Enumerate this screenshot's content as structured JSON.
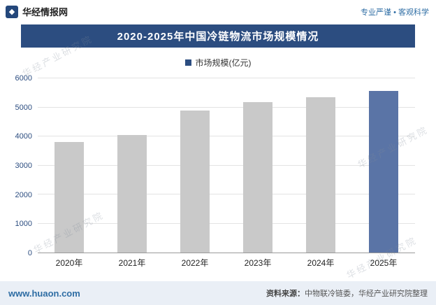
{
  "header": {
    "site_name": "华经情报网",
    "tagline": "专业严谨 • 客观科学",
    "logo_glyph": "◆"
  },
  "title": "2020-2025年中国冷链物流市场规模情况",
  "legend": {
    "label": "市场规模(亿元)"
  },
  "chart_data": {
    "type": "bar",
    "title": "2020-2025年中国冷链物流市场规模情况",
    "categories": [
      "2020年",
      "2021年",
      "2022年",
      "2023年",
      "2024年",
      "2025年"
    ],
    "values": [
      3800,
      4050,
      4900,
      5170,
      5340,
      5560
    ],
    "series": [
      {
        "name": "市场规模(亿元)",
        "values": [
          3800,
          4050,
          4900,
          5170,
          5340,
          5560
        ]
      }
    ],
    "xlabel": "",
    "ylabel": "",
    "ylim": [
      0,
      6000
    ],
    "yticks": [
      0,
      1000,
      2000,
      3000,
      4000,
      5000,
      6000
    ],
    "grid": true,
    "legend_position": "top",
    "bar_color": "#c9c9c9",
    "highlight_bar_color": "#5a74a6",
    "highlight_index": 5
  },
  "footer": {
    "website": "www.huaon.com",
    "source_label": "资料来源：",
    "source_text": "中物联冷链委，华经产业研究院整理"
  },
  "watermark": "华经产业研究院",
  "colors": {
    "title_bg": "#2c4d80",
    "accent_blue": "#2e6da4",
    "bar_gray": "#c9c9c9",
    "bar_blue": "#5a74a6",
    "footer_bg": "#eaeff6",
    "tick_blue": "#2c4d80"
  }
}
